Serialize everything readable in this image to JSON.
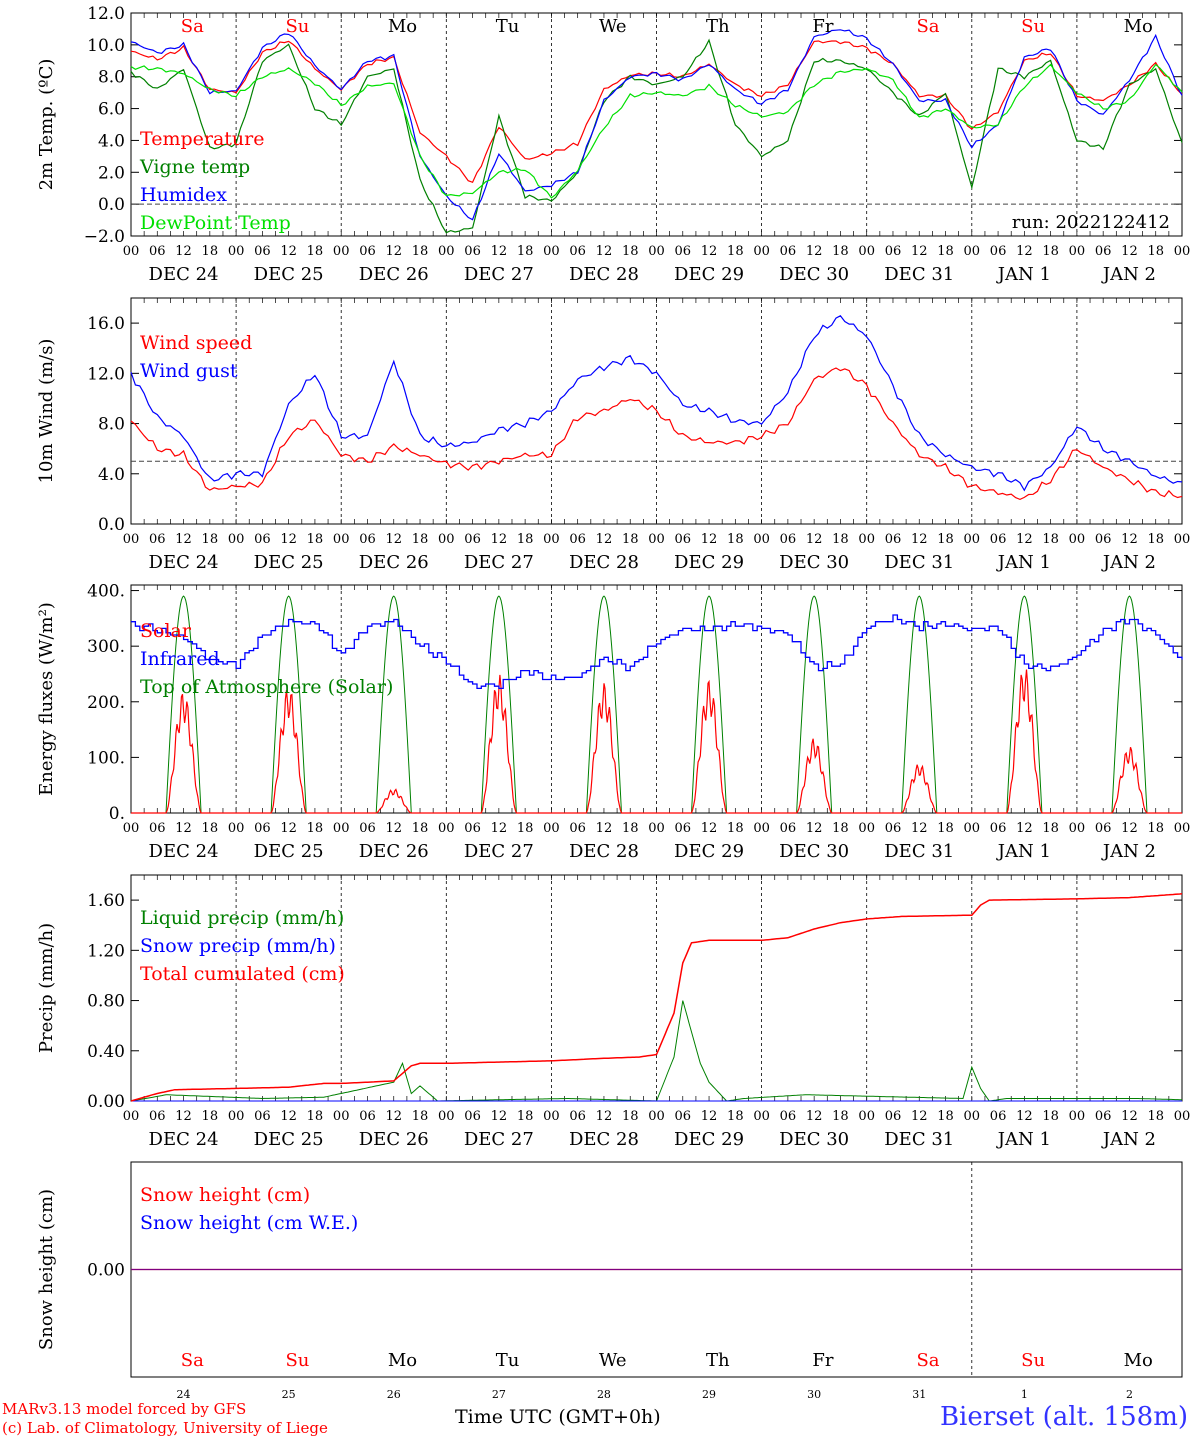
{
  "chart_data": [
    {
      "type": "line",
      "ylabel": "2m Temp. (ºC)",
      "ylim": [
        -2,
        12
      ],
      "yticks": [
        "12.0",
        "10.0",
        "8.0",
        "6.0",
        "4.0",
        "2.0",
        "0.0",
        "−2.0"
      ],
      "yticks_values": [
        12,
        10,
        8,
        6,
        4,
        2,
        0,
        -2
      ],
      "dashed_reference_y": 0.0,
      "annotation": "run: 2022122412",
      "x_hours": [
        0,
        6,
        12,
        18,
        24,
        30,
        36,
        42,
        48,
        54,
        60,
        66,
        72,
        78,
        84,
        90,
        96,
        102,
        108,
        114,
        120,
        126,
        132,
        138,
        144,
        150,
        156,
        162,
        168,
        174,
        180,
        186,
        192,
        198,
        204,
        210,
        216,
        222,
        228,
        234,
        240
      ],
      "series": [
        {
          "name": "Temperature",
          "color": "#ff0000",
          "values": [
            9.6,
            9.1,
            9.8,
            7.2,
            7.0,
            9.5,
            10.3,
            8.5,
            7.2,
            8.8,
            9.2,
            4.5,
            3.0,
            1.3,
            4.9,
            2.8,
            3.2,
            3.8,
            7.2,
            8.1,
            8.2,
            8.0,
            8.8,
            7.5,
            6.8,
            7.5,
            10.2,
            10.2,
            9.8,
            8.8,
            6.8,
            6.8,
            4.7,
            5.8,
            9.0,
            9.5,
            6.8,
            6.5,
            7.5,
            8.8,
            6.9
          ]
        },
        {
          "name": "Vigne temp",
          "color": "#008000",
          "values": [
            8.3,
            7.2,
            8.5,
            3.5,
            3.8,
            9.0,
            10.0,
            6.0,
            5.0,
            8.0,
            8.5,
            1.5,
            -1.8,
            -1.5,
            5.5,
            0.5,
            0.2,
            2.0,
            6.5,
            8.0,
            7.5,
            8.0,
            10.2,
            5.0,
            3.0,
            4.0,
            9.0,
            9.0,
            8.5,
            7.0,
            5.5,
            7.0,
            1.0,
            8.5,
            8.0,
            9.0,
            4.0,
            3.5,
            7.5,
            8.5,
            3.8
          ]
        },
        {
          "name": "Humidex",
          "color": "#0000ff",
          "values": [
            10.2,
            9.5,
            10.0,
            7.0,
            7.1,
            9.8,
            10.8,
            8.7,
            7.2,
            9.0,
            9.3,
            3.0,
            0.5,
            -1.0,
            3.2,
            0.8,
            1.2,
            2.0,
            6.5,
            8.0,
            8.2,
            7.8,
            8.8,
            7.2,
            6.3,
            7.2,
            10.5,
            11.0,
            10.4,
            8.8,
            6.5,
            6.5,
            3.6,
            5.0,
            9.2,
            9.8,
            6.5,
            5.6,
            7.8,
            10.5,
            6.8
          ]
        },
        {
          "name": "DewPoint Temp",
          "color": "#00e000",
          "values": [
            8.6,
            8.5,
            8.2,
            7.2,
            6.8,
            8.0,
            8.5,
            7.6,
            6.2,
            7.4,
            7.6,
            3.0,
            0.5,
            0.7,
            2.0,
            2.2,
            0.4,
            2.1,
            4.8,
            6.8,
            7.0,
            6.8,
            7.4,
            6.2,
            5.5,
            5.8,
            7.5,
            8.3,
            8.5,
            7.8,
            5.4,
            6.0,
            4.8,
            5.0,
            7.4,
            8.7,
            7.0,
            6.0,
            6.5,
            8.8,
            7.0
          ]
        }
      ],
      "legend": [
        "Temperature",
        "Vigne temp",
        "Humidex",
        "DewPoint Temp"
      ],
      "day_labels": [
        {
          "label": "Sa",
          "color": "#ff0000"
        },
        {
          "label": "Su",
          "color": "#ff0000"
        },
        {
          "label": "Mo",
          "color": "#000000"
        },
        {
          "label": "Tu",
          "color": "#000000"
        },
        {
          "label": "We",
          "color": "#000000"
        },
        {
          "label": "Th",
          "color": "#000000"
        },
        {
          "label": "Fr",
          "color": "#000000"
        },
        {
          "label": "Sa",
          "color": "#ff0000"
        },
        {
          "label": "Su",
          "color": "#ff0000"
        },
        {
          "label": "Mo",
          "color": "#000000"
        }
      ]
    },
    {
      "type": "line",
      "ylabel": "10m Wind (m/s)",
      "ylim": [
        0,
        18
      ],
      "yticks": [
        "16.0",
        "12.0",
        "8.0",
        "4.0",
        "0.0"
      ],
      "yticks_values": [
        16,
        12,
        8,
        4,
        0
      ],
      "dashed_reference_y": 5.0,
      "x_hours": [
        0,
        6,
        12,
        18,
        24,
        30,
        36,
        42,
        48,
        54,
        60,
        66,
        72,
        78,
        84,
        90,
        96,
        102,
        108,
        114,
        120,
        126,
        132,
        138,
        144,
        150,
        156,
        162,
        168,
        174,
        180,
        186,
        192,
        198,
        204,
        210,
        216,
        222,
        228,
        234,
        240
      ],
      "series": [
        {
          "name": "Wind speed",
          "color": "#ff0000",
          "values": [
            8.2,
            6.0,
            5.5,
            2.7,
            3.0,
            3.2,
            7.0,
            8.3,
            5.5,
            5.0,
            6.2,
            5.5,
            4.8,
            4.5,
            5.0,
            5.5,
            5.5,
            8.5,
            9.0,
            10.0,
            9.0,
            7.0,
            6.5,
            6.5,
            7.0,
            8.0,
            11.5,
            12.5,
            11.0,
            8.0,
            5.5,
            4.5,
            3.0,
            2.5,
            2.0,
            3.5,
            6.0,
            4.5,
            3.5,
            2.5,
            2.2
          ]
        },
        {
          "name": "Wind gust",
          "color": "#0000ff",
          "values": [
            12.0,
            8.5,
            7.0,
            3.5,
            4.0,
            4.0,
            9.5,
            12.0,
            7.0,
            7.0,
            13.0,
            7.0,
            6.2,
            6.5,
            7.5,
            8.0,
            9.0,
            11.5,
            12.5,
            13.2,
            12.0,
            9.5,
            9.0,
            8.2,
            8.0,
            10.5,
            15.0,
            16.5,
            15.0,
            11.0,
            7.0,
            5.5,
            4.5,
            4.0,
            3.0,
            4.5,
            7.8,
            6.0,
            5.0,
            3.8,
            3.2
          ]
        }
      ],
      "legend": [
        "Wind speed",
        "Wind gust"
      ]
    },
    {
      "type": "line",
      "ylabel": "Energy fluxes (W/m²)",
      "ylim": [
        0,
        410
      ],
      "yticks": [
        "400.",
        "300.",
        "200.",
        "100.",
        "0."
      ],
      "yticks_values": [
        400,
        300,
        200,
        100,
        0
      ],
      "solar_day_peaks": [
        192,
        200,
        38,
        218,
        205,
        210,
        118,
        78,
        232,
        105
      ],
      "toa_peak": 390,
      "sunrise_hour": 8,
      "sunset_hour": 16,
      "series": [
        {
          "name": "Solar",
          "color": "#ff0000"
        },
        {
          "name": "Infrared",
          "color": "#0000ff",
          "x_hours": [
            0,
            6,
            12,
            18,
            24,
            30,
            36,
            42,
            48,
            54,
            60,
            66,
            72,
            78,
            84,
            90,
            96,
            102,
            108,
            114,
            120,
            126,
            132,
            138,
            144,
            150,
            156,
            162,
            168,
            174,
            180,
            186,
            192,
            198,
            204,
            210,
            216,
            222,
            228,
            234,
            240
          ],
          "values": [
            338,
            330,
            315,
            275,
            268,
            318,
            345,
            340,
            285,
            335,
            345,
            300,
            272,
            228,
            230,
            255,
            240,
            245,
            278,
            262,
            308,
            330,
            330,
            340,
            332,
            322,
            262,
            268,
            335,
            350,
            335,
            340,
            330,
            332,
            265,
            258,
            285,
            328,
            350,
            320,
            275
          ]
        },
        {
          "name": "Top of Atmosphere (Solar)",
          "color": "#008000"
        }
      ],
      "legend": [
        "Solar",
        "Infrared",
        "Top of Atmosphere (Solar)"
      ]
    },
    {
      "type": "line",
      "ylabel": "Precip (mm/h)",
      "ylim": [
        0,
        1.8
      ],
      "yticks": [
        "1.60",
        "1.20",
        "0.80",
        "0.40",
        "0.00"
      ],
      "yticks_values": [
        1.6,
        1.2,
        0.8,
        0.4,
        0.0
      ],
      "series": [
        {
          "name": "Liquid precip (mm/h)",
          "color": "#008000",
          "x_hours": [
            0,
            5,
            8,
            30,
            44,
            60,
            62,
            64,
            66,
            70,
            84,
            100,
            120,
            124,
            126,
            130,
            132,
            136,
            140,
            154,
            190,
            192,
            194,
            196,
            200,
            230,
            240
          ],
          "values": [
            0,
            0.03,
            0.05,
            0.02,
            0.03,
            0.15,
            0.3,
            0.06,
            0.12,
            0.0,
            0.01,
            0.02,
            0.0,
            0.35,
            0.8,
            0.3,
            0.15,
            0.0,
            0.02,
            0.05,
            0.02,
            0.27,
            0.1,
            0.0,
            0.02,
            0.02,
            0.01
          ]
        },
        {
          "name": "Snow precip (mm/h)",
          "color": "#0000ff",
          "x_hours": [
            0,
            240
          ],
          "values": [
            0,
            0
          ]
        },
        {
          "name": "Total cumulated (cm)",
          "color": "#ff0000",
          "x_hours": [
            0,
            6,
            10,
            24,
            36,
            44,
            48,
            60,
            64,
            66,
            72,
            96,
            108,
            116,
            120,
            124,
            126,
            128,
            132,
            144,
            150,
            156,
            162,
            168,
            176,
            192,
            194,
            196,
            216,
            228,
            240
          ],
          "values": [
            0,
            0.06,
            0.09,
            0.1,
            0.11,
            0.14,
            0.14,
            0.16,
            0.28,
            0.3,
            0.3,
            0.32,
            0.34,
            0.35,
            0.37,
            0.7,
            1.1,
            1.26,
            1.28,
            1.28,
            1.3,
            1.37,
            1.42,
            1.45,
            1.47,
            1.48,
            1.56,
            1.6,
            1.61,
            1.62,
            1.65
          ]
        }
      ],
      "legend": [
        "Liquid precip (mm/h)",
        "Snow precip (mm/h)",
        "Total cumulated (cm)"
      ]
    },
    {
      "type": "line",
      "ylabel": "Snow height (cm)",
      "ylim": [
        -1,
        1
      ],
      "yticks": [
        "0.00"
      ],
      "yticks_values": [
        0
      ],
      "series": [
        {
          "name": "Snow height (cm)",
          "color": "#ff0000",
          "x_hours": [
            0,
            240
          ],
          "values": [
            0,
            0
          ]
        },
        {
          "name": "Snow height (cm W.E.)",
          "color": "#0000ff",
          "x_hours": [
            0,
            240
          ],
          "values": [
            0,
            0
          ]
        }
      ],
      "legend": [
        "Snow height (cm)",
        "Snow height (cm W.E.)"
      ],
      "day_labels": [
        {
          "label": "Sa",
          "color": "#ff0000"
        },
        {
          "label": "Su",
          "color": "#ff0000"
        },
        {
          "label": "Mo",
          "color": "#000000"
        },
        {
          "label": "Tu",
          "color": "#000000"
        },
        {
          "label": "We",
          "color": "#000000"
        },
        {
          "label": "Th",
          "color": "#000000"
        },
        {
          "label": "Fr",
          "color": "#000000"
        },
        {
          "label": "Sa",
          "color": "#ff0000"
        },
        {
          "label": "Su",
          "color": "#ff0000"
        },
        {
          "label": "Mo",
          "color": "#000000"
        }
      ],
      "day_numbers": [
        "24",
        "25",
        "26",
        "27",
        "28",
        "29",
        "30",
        "31",
        "1",
        "2"
      ]
    }
  ],
  "date_labels": [
    "DEC 24",
    "DEC 25",
    "DEC 26",
    "DEC 27",
    "DEC 28",
    "DEC 29",
    "DEC 30",
    "DEC 31",
    "JAN  1",
    "JAN  2"
  ],
  "hour_labels": [
    "00",
    "06",
    "12",
    "18"
  ],
  "x_axis_title": "Time UTC (GMT+0h)",
  "credits": [
    "MARv3.13 model forced by GFS",
    "(c) Lab. of Climatology, University of Liege"
  ],
  "station": "Bierset (alt. 158m)"
}
